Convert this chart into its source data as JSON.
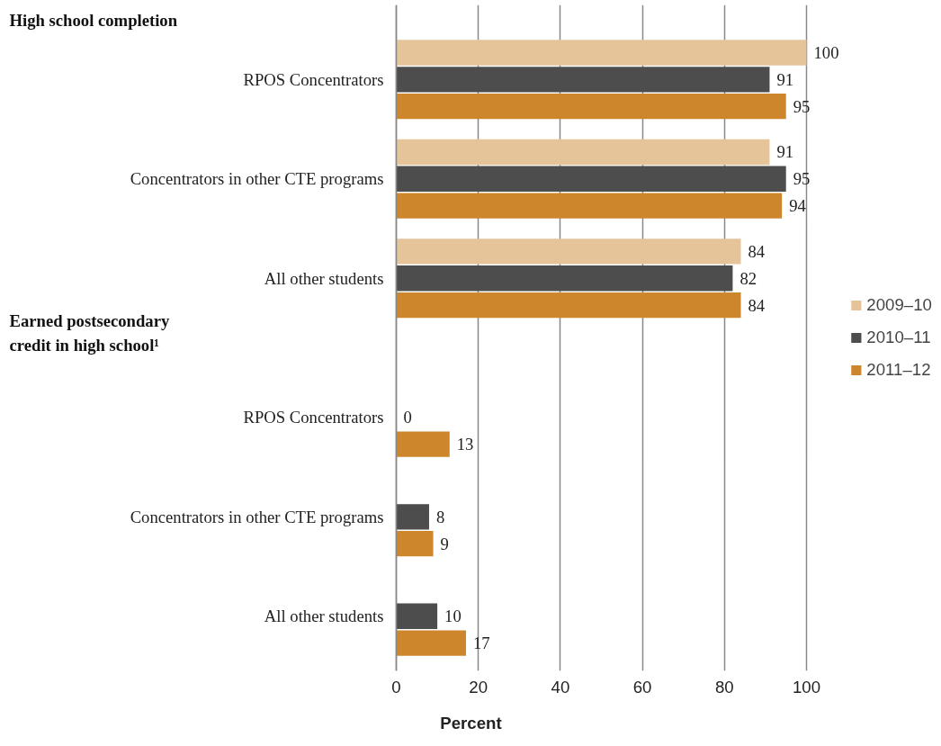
{
  "chart_data": {
    "type": "bar",
    "orientation": "horizontal",
    "categories": [
      "RPOS Concentrators",
      "Concentrators in other CTE programs",
      "All other students",
      "RPOS Concentrators",
      "Concentrators in other CTE programs",
      "All other students"
    ],
    "series": [
      {
        "name": "2009–10",
        "color": "#e6c49a",
        "values": [
          100,
          91,
          84,
          null,
          null,
          null
        ]
      },
      {
        "name": "2010–11",
        "color": "#4d4d4d",
        "values": [
          91,
          95,
          82,
          0,
          8,
          10
        ]
      },
      {
        "name": "2011–12",
        "color": "#cd862c",
        "values": [
          95,
          94,
          84,
          13,
          9,
          17
        ]
      }
    ],
    "annotations": [
      "High school completion",
      "Earned postsecondary credit in high school¹"
    ],
    "xlabel": "Percent",
    "xlim": [
      0,
      100
    ],
    "xticks": [
      0,
      20,
      40,
      60,
      80,
      100
    ],
    "grid": "x",
    "legend": "right",
    "data_labels": true
  }
}
